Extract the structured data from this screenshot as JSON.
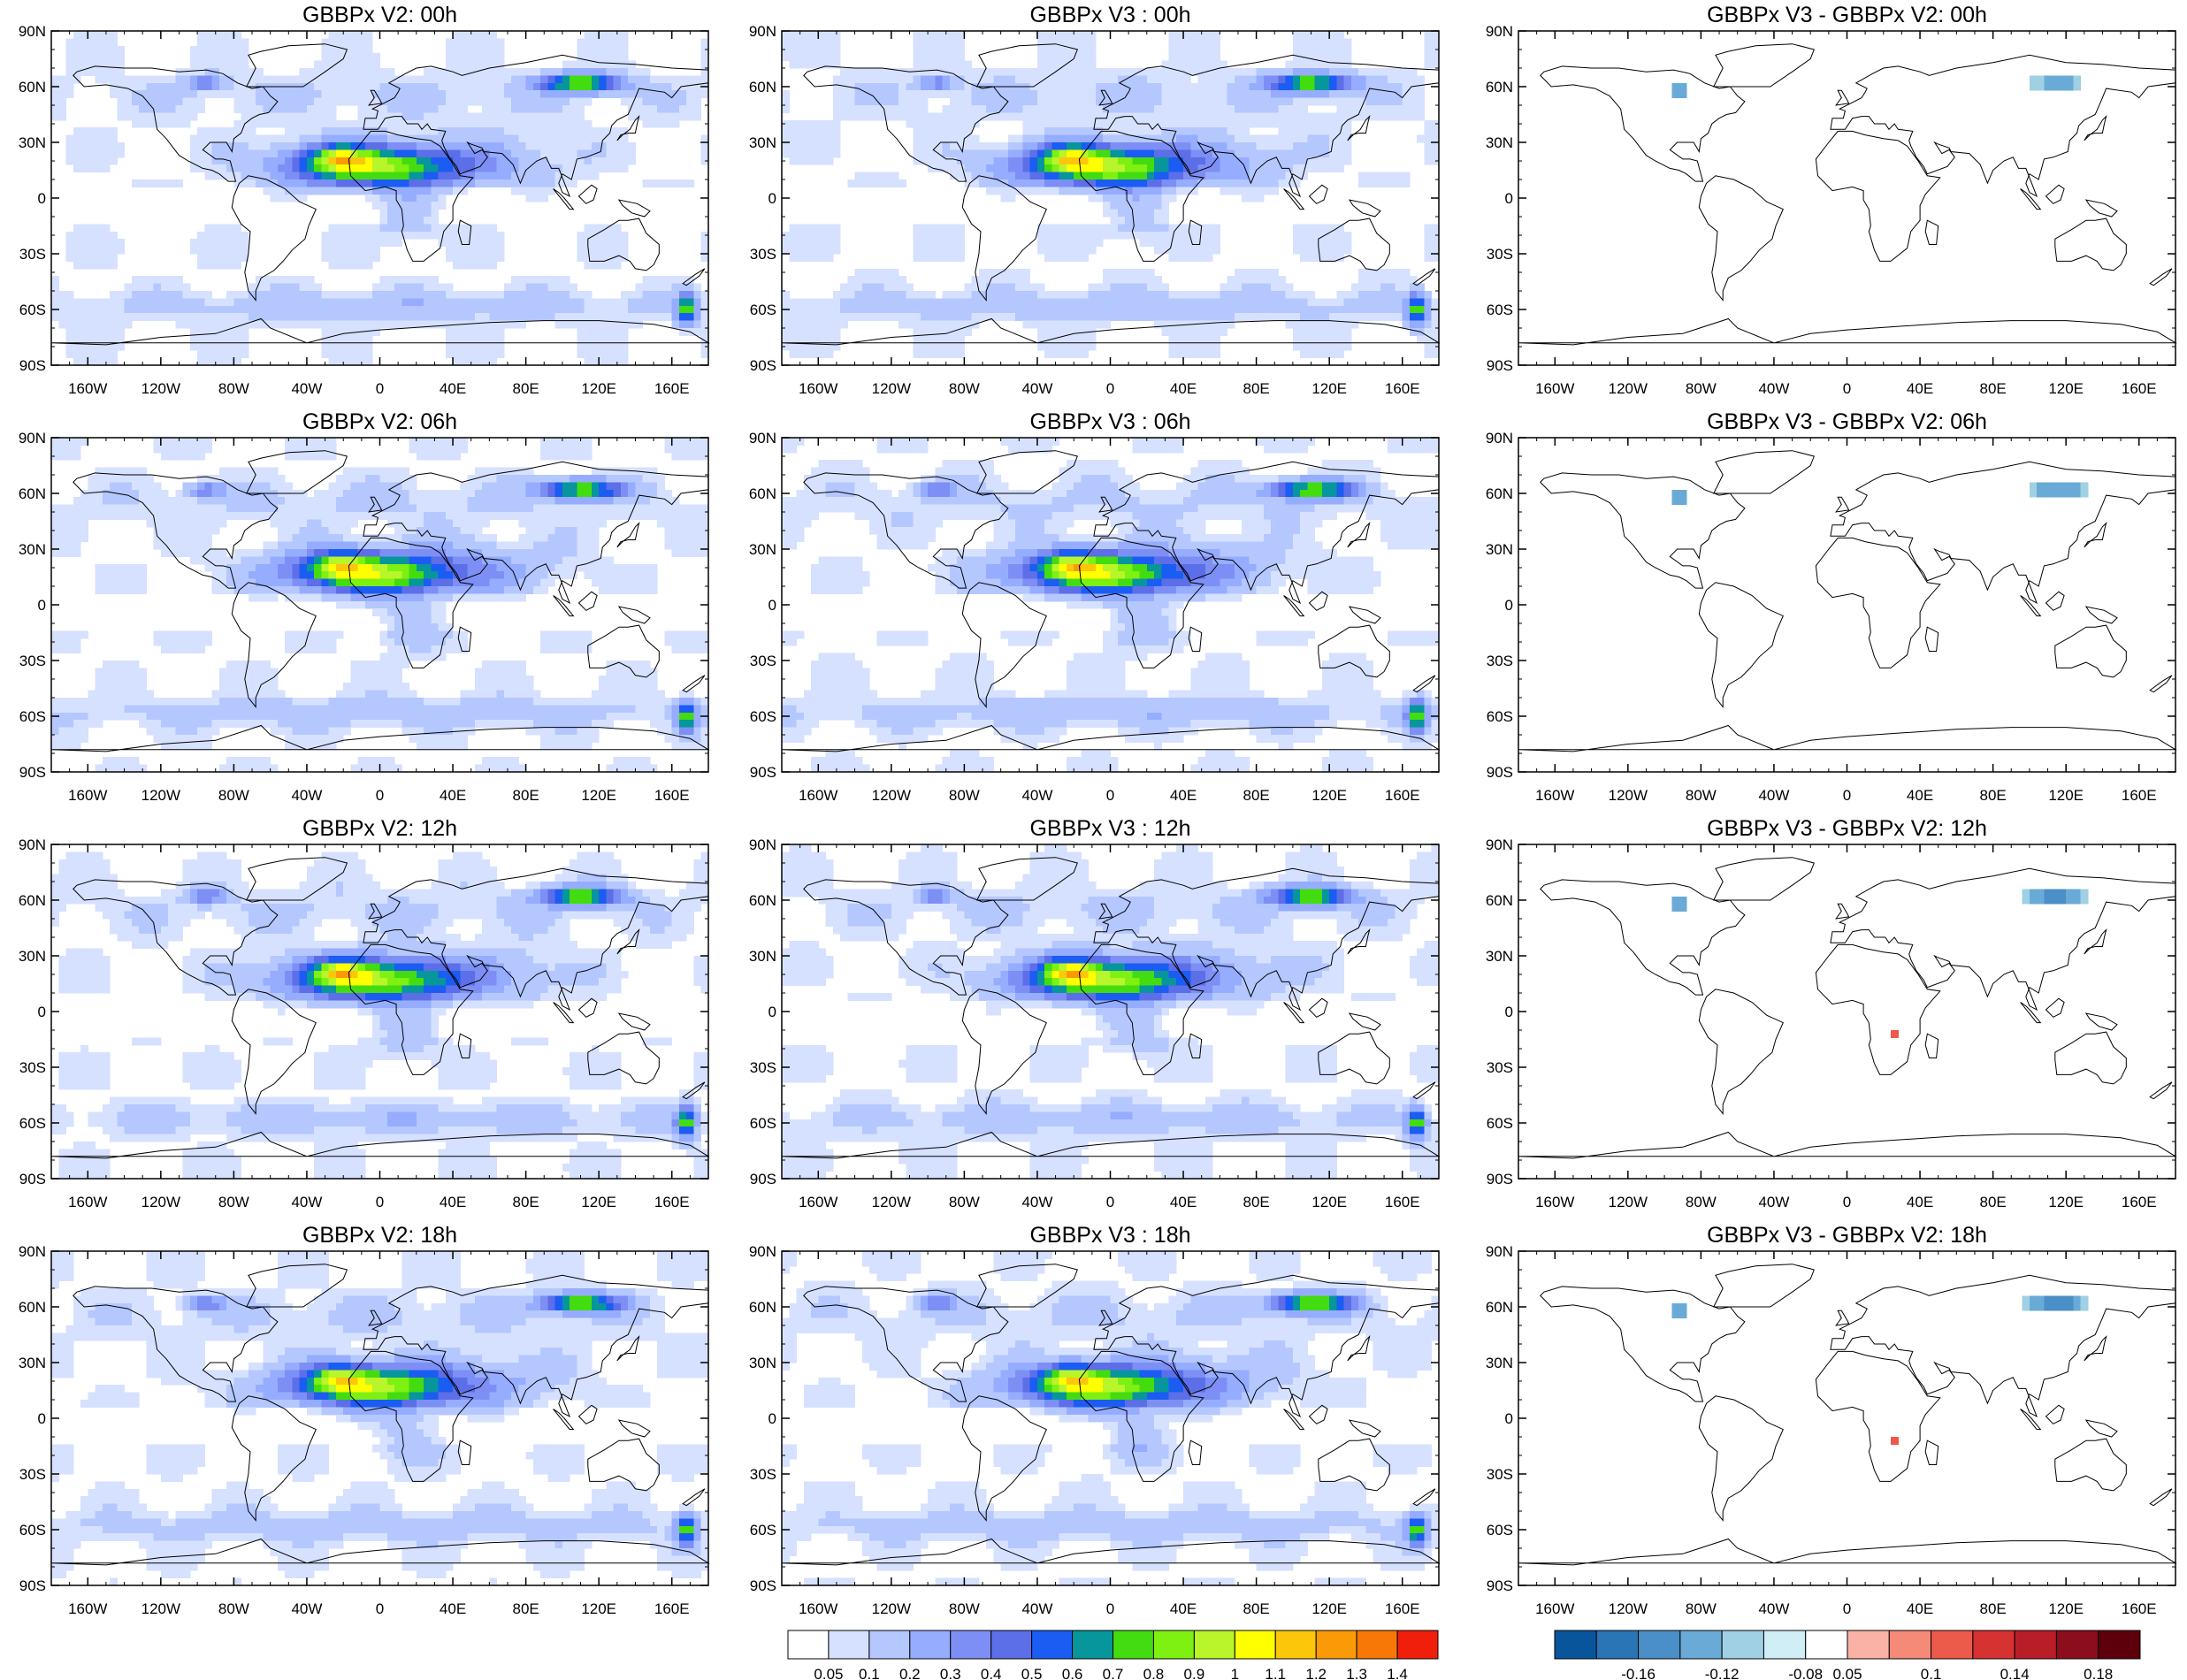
{
  "panels": [
    {
      "title": "GBBPx V2: 00h",
      "kind": "field"
    },
    {
      "title": "GBBPx V3 : 00h",
      "kind": "field"
    },
    {
      "title": "GBBPx V3 - GBBPx V2: 00h",
      "kind": "diff"
    },
    {
      "title": "GBBPx V2: 06h",
      "kind": "field"
    },
    {
      "title": "GBBPx V3 : 06h",
      "kind": "field"
    },
    {
      "title": "GBBPx V3 - GBBPx V2: 06h",
      "kind": "diff"
    },
    {
      "title": "GBBPx V2: 12h",
      "kind": "field"
    },
    {
      "title": "GBBPx V3 : 12h",
      "kind": "field"
    },
    {
      "title": "GBBPx V3 - GBBPx V2: 12h",
      "kind": "diff"
    },
    {
      "title": "GBBPx V2: 18h",
      "kind": "field"
    },
    {
      "title": "GBBPx V3 : 18h",
      "kind": "field"
    },
    {
      "title": "GBBPx V3 - GBBPx V2: 18h",
      "kind": "diff"
    }
  ],
  "lat_ticks": [
    "90N",
    "60N",
    "30N",
    "0",
    "30S",
    "60S",
    "90S"
  ],
  "lon_ticks": [
    "160W",
    "120W",
    "80W",
    "40W",
    "0",
    "40E",
    "80E",
    "120E",
    "160E"
  ],
  "lon_tick_values": [
    -160,
    -120,
    -80,
    -40,
    0,
    40,
    80,
    120,
    160
  ],
  "lat_tick_values": [
    90,
    60,
    30,
    0,
    -30,
    -60,
    -90
  ],
  "map_extent": {
    "lon": [
      -180,
      180
    ],
    "lat": [
      -90,
      90
    ]
  },
  "colorbar_field": {
    "labels": [
      "0.05",
      "0.1",
      "0.2",
      "0.3",
      "0.4",
      "0.5",
      "0.6",
      "0.7",
      "0.8",
      "0.9",
      "1",
      "1.1",
      "1.2",
      "1.3",
      "1.4"
    ],
    "colors": [
      "#ffffff",
      "#d6e1ff",
      "#b4c7ff",
      "#96acff",
      "#7d8ff5",
      "#5c6ee8",
      "#1b5cf3",
      "#06969c",
      "#43dc10",
      "#7ef012",
      "#b8f52a",
      "#ffff00",
      "#fcc70a",
      "#fb9a07",
      "#f77806",
      "#f01f0b"
    ]
  },
  "colorbar_diff": {
    "labels": [
      "-0.16",
      "-0.12",
      "-0.08",
      "0.05",
      "0.1",
      "0.14",
      "0.18"
    ],
    "colors": [
      "#08559c",
      "#2a75b6",
      "#4a8fc7",
      "#6aaad6",
      "#9fd0e4",
      "#d0eef6",
      "#ffffff",
      "#fbb2a6",
      "#f48a77",
      "#ec5a4b",
      "#d63231",
      "#b91d27",
      "#8c0d1c",
      "#5d000c"
    ]
  }
}
